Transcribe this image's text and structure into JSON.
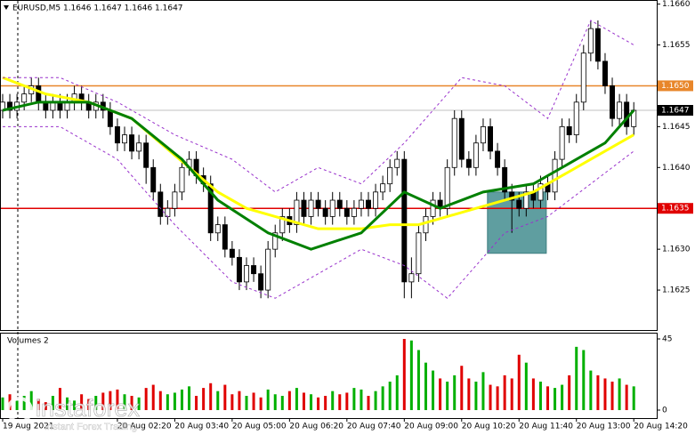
{
  "chart_data": {
    "type": "candlestick",
    "title": "EURUSD,M5  1.1646 1.1647 1.1646 1.1647",
    "xlim": [
      -0.37,
      91.2
    ],
    "xticks": [
      {
        "value": 0,
        "label": "19 Aug 2021"
      },
      {
        "value": 16,
        "label": "20 Aug 02:20"
      },
      {
        "value": 24,
        "label": "20 Aug 03:40"
      },
      {
        "value": 32,
        "label": "20 Aug 05:00"
      },
      {
        "value": 40,
        "label": "20 Aug 06:20"
      },
      {
        "value": 48,
        "label": "20 Aug 07:40"
      },
      {
        "value": 56,
        "label": "20 Aug 09:00"
      },
      {
        "value": 64,
        "label": "20 Aug 10:20"
      },
      {
        "value": 72,
        "label": "20 Aug 11:40"
      },
      {
        "value": 80,
        "label": "20 Aug 13:00"
      },
      {
        "value": 88,
        "label": "20 Aug 14:20"
      }
    ],
    "ylim": [
      1.162,
      1.16605
    ],
    "yticks": [
      {
        "value": 1.166,
        "label": "1.1660"
      },
      {
        "value": 1.1655,
        "label": "1.1655"
      },
      {
        "value": 1.1645,
        "label": "1.1645"
      },
      {
        "value": 1.164,
        "label": "1.1640"
      },
      {
        "value": 1.163,
        "label": "1.1630"
      },
      {
        "value": 1.1625,
        "label": "1.1625"
      }
    ],
    "up_color": "#ffffff",
    "down_color": "#000000",
    "open": [
      1.1647,
      1.1648,
      1.1647,
      1.1648,
      1.1649,
      1.165,
      1.1648,
      1.1647,
      1.1648,
      1.1647,
      1.1648,
      1.1649,
      1.1648,
      1.1647,
      1.1648,
      1.1647,
      1.1645,
      1.1643,
      1.1644,
      1.1642,
      1.1643,
      1.164,
      1.1637,
      1.1634,
      1.1635,
      1.1637,
      1.164,
      1.1641,
      1.1639,
      1.1638,
      1.1632,
      1.1633,
      1.163,
      1.1629,
      1.1626,
      1.1628,
      1.1627,
      1.1625,
      1.163,
      1.1632,
      1.1634,
      1.1633,
      1.1636,
      1.1634,
      1.1636,
      1.1635,
      1.1634,
      1.1636,
      1.1635,
      1.1634,
      1.1635,
      1.1636,
      1.1635,
      1.1637,
      1.1638,
      1.164,
      1.1641,
      1.1626,
      1.1627,
      1.1632,
      1.1634,
      1.1636,
      1.1635,
      1.164,
      1.1646,
      1.1641,
      1.164,
      1.1643,
      1.1645,
      1.1642,
      1.164,
      1.1637,
      1.1636,
      1.1635,
      1.1637,
      1.1636,
      1.1638,
      1.1637,
      1.1641,
      1.1645,
      1.1644,
      1.1648,
      1.1654,
      1.1657,
      1.1653,
      1.165,
      1.1646,
      1.1648,
      1.1645
    ],
    "high": [
      1.1649,
      1.1649,
      1.1649,
      1.165,
      1.1651,
      1.1651,
      1.1649,
      1.1649,
      1.1649,
      1.1649,
      1.165,
      1.165,
      1.1649,
      1.1649,
      1.1649,
      1.1648,
      1.1646,
      1.1645,
      1.1645,
      1.1644,
      1.1644,
      1.1641,
      1.1638,
      1.1636,
      1.1638,
      1.1641,
      1.1642,
      1.1642,
      1.164,
      1.1639,
      1.1634,
      1.1634,
      1.1631,
      1.163,
      1.1629,
      1.1629,
      1.1628,
      1.1631,
      1.1633,
      1.1635,
      1.1635,
      1.1637,
      1.1637,
      1.1637,
      1.1637,
      1.1636,
      1.1637,
      1.1637,
      1.1636,
      1.1636,
      1.1637,
      1.1637,
      1.1638,
      1.1639,
      1.1641,
      1.1642,
      1.1642,
      1.1629,
      1.1633,
      1.1635,
      1.1637,
      1.1637,
      1.1641,
      1.1647,
      1.1647,
      1.1642,
      1.1644,
      1.1646,
      1.1646,
      1.1643,
      1.1641,
      1.1638,
      1.1637,
      1.1638,
      1.1638,
      1.1639,
      1.1639,
      1.1642,
      1.1646,
      1.1646,
      1.1649,
      1.1655,
      1.1658,
      1.1658,
      1.1654,
      1.1651,
      1.1649,
      1.1649,
      1.1648
    ],
    "low": [
      1.1646,
      1.1646,
      1.1646,
      1.1647,
      1.1648,
      1.1647,
      1.1646,
      1.1646,
      1.1646,
      1.1646,
      1.1647,
      1.1647,
      1.1646,
      1.1646,
      1.1646,
      1.1644,
      1.1642,
      1.1642,
      1.1641,
      1.1641,
      1.1638,
      1.1636,
      1.1633,
      1.1633,
      1.1634,
      1.1636,
      1.1639,
      1.1638,
      1.1637,
      1.1631,
      1.1631,
      1.1629,
      1.1628,
      1.1625,
      1.1625,
      1.1626,
      1.1624,
      1.1624,
      1.1629,
      1.1631,
      1.1632,
      1.1632,
      1.1633,
      1.1633,
      1.1634,
      1.1633,
      1.1633,
      1.1634,
      1.1633,
      1.1633,
      1.1634,
      1.1634,
      1.1634,
      1.1636,
      1.1637,
      1.1639,
      1.1624,
      1.1624,
      1.1626,
      1.1631,
      1.1633,
      1.1634,
      1.1634,
      1.1639,
      1.164,
      1.1639,
      1.1639,
      1.1642,
      1.1641,
      1.1639,
      1.1636,
      1.1632,
      1.1634,
      1.1634,
      1.1635,
      1.1635,
      1.1636,
      1.1636,
      1.164,
      1.1643,
      1.1643,
      1.1647,
      1.1653,
      1.1652,
      1.1649,
      1.1645,
      1.1645,
      1.1644,
      1.1644
    ],
    "close": [
      1.1648,
      1.1647,
      1.1648,
      1.1649,
      1.165,
      1.1648,
      1.1647,
      1.1648,
      1.1647,
      1.1648,
      1.1649,
      1.1648,
      1.1647,
      1.1648,
      1.1647,
      1.1645,
      1.1643,
      1.1644,
      1.1642,
      1.1643,
      1.164,
      1.1637,
      1.1634,
      1.1635,
      1.1637,
      1.164,
      1.1641,
      1.1639,
      1.1638,
      1.1632,
      1.1633,
      1.163,
      1.1629,
      1.1626,
      1.1628,
      1.1627,
      1.1625,
      1.163,
      1.1632,
      1.1634,
      1.1633,
      1.1636,
      1.1634,
      1.1636,
      1.1635,
      1.1634,
      1.1636,
      1.1635,
      1.1634,
      1.1635,
      1.1636,
      1.1635,
      1.1637,
      1.1638,
      1.164,
      1.1641,
      1.1626,
      1.1627,
      1.1632,
      1.1634,
      1.1636,
      1.1635,
      1.164,
      1.1646,
      1.1641,
      1.164,
      1.1643,
      1.1645,
      1.1642,
      1.164,
      1.1637,
      1.1636,
      1.1635,
      1.1637,
      1.1636,
      1.1638,
      1.1637,
      1.1641,
      1.1645,
      1.1644,
      1.1648,
      1.1654,
      1.1657,
      1.1653,
      1.165,
      1.1646,
      1.1648,
      1.1645,
      1.1647
    ],
    "lines": [
      {
        "color": "#ffff00",
        "width": 3,
        "dashed": false,
        "x": [
          0,
          6,
          12,
          18,
          22,
          26,
          30,
          34,
          38,
          44,
          50,
          54,
          58,
          62,
          66,
          70,
          74,
          78,
          82,
          86,
          88
        ],
        "values": [
          1.1651,
          1.1649,
          1.1648,
          1.1646,
          1.1643,
          1.164,
          1.1637,
          1.1635,
          1.1634,
          1.16325,
          1.16325,
          1.1633,
          1.1633,
          1.1634,
          1.1635,
          1.1636,
          1.1637,
          1.1639,
          1.1641,
          1.1643,
          1.1644
        ]
      },
      {
        "color": "#008000",
        "width": 3,
        "dashed": false,
        "x": [
          0,
          5,
          12,
          18,
          25,
          30,
          37,
          43,
          50,
          56,
          61,
          67,
          74,
          80,
          84,
          88
        ],
        "values": [
          1.1647,
          1.1648,
          1.1648,
          1.1646,
          1.1641,
          1.1636,
          1.1632,
          1.163,
          1.1632,
          1.1637,
          1.1635,
          1.1637,
          1.1638,
          1.1641,
          1.1643,
          1.1647
        ]
      },
      {
        "color": "#9932cc",
        "width": 1,
        "dashed": true,
        "x": [
          0,
          8,
          16,
          24,
          32,
          38,
          44,
          50,
          56,
          64,
          70,
          76,
          82,
          88
        ],
        "values": [
          1.1651,
          1.1651,
          1.1648,
          1.1644,
          1.1641,
          1.1637,
          1.164,
          1.1638,
          1.1643,
          1.1651,
          1.165,
          1.1646,
          1.1658,
          1.1655
        ]
      },
      {
        "color": "#9932cc",
        "width": 1,
        "dashed": true,
        "x": [
          0,
          8,
          16,
          24,
          32,
          38,
          44,
          50,
          56,
          62,
          70,
          76,
          82,
          88
        ],
        "values": [
          1.1645,
          1.1645,
          1.1641,
          1.1633,
          1.1626,
          1.1624,
          1.1627,
          1.163,
          1.1628,
          1.1624,
          1.1632,
          1.1634,
          1.1638,
          1.1642
        ]
      }
    ],
    "levels": [
      {
        "value": 1.165,
        "label": "1.1650",
        "color": "#e8862a"
      },
      {
        "value": 1.1647,
        "label": "1.1647",
        "color": "#000000",
        "line_color": "#c0c0c0"
      },
      {
        "value": 1.1635,
        "label": "1.1635",
        "color": "#e00000"
      }
    ],
    "zone": {
      "x": [
        67.6,
        75.8
      ],
      "y": [
        1.16295,
        1.1637
      ],
      "color": "#5f9ea0"
    },
    "volumes": {
      "label": "Volumes 2",
      "ylim": [
        0,
        45
      ],
      "yticks": [
        45,
        0
      ],
      "up_color": "#00b000",
      "down_color": "#e00000",
      "values": [
        8,
        10,
        6,
        9,
        12,
        7,
        5,
        9,
        14,
        8,
        6,
        10,
        7,
        9,
        11,
        12,
        13,
        10,
        9,
        8,
        14,
        16,
        12,
        10,
        11,
        13,
        15,
        9,
        14,
        17,
        12,
        16,
        10,
        12,
        9,
        11,
        8,
        13,
        10,
        9,
        12,
        14,
        11,
        10,
        8,
        9,
        12,
        10,
        11,
        14,
        13,
        9,
        12,
        15,
        18,
        22,
        45,
        44,
        38,
        30,
        25,
        20,
        18,
        22,
        28,
        20,
        18,
        24,
        16,
        15,
        22,
        20,
        35,
        30,
        20,
        18,
        15,
        14,
        16,
        22,
        40,
        38,
        25,
        22,
        20,
        18,
        20,
        16,
        15
      ]
    },
    "watermark": {
      "brand": "instaforex",
      "tagline": "Instant Forex Trading"
    }
  }
}
